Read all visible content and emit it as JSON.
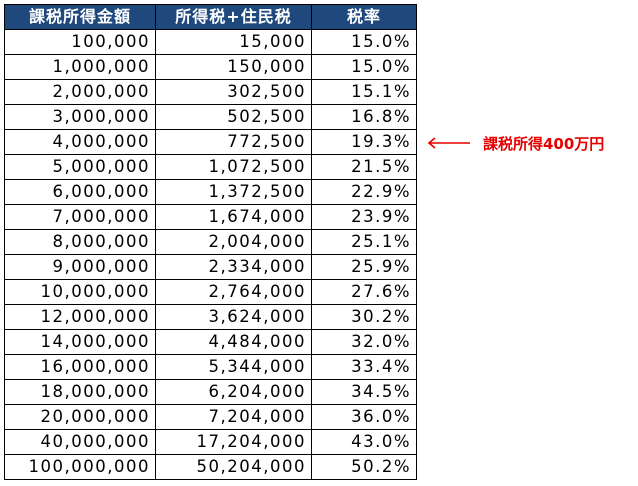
{
  "colors": {
    "header_bg": "#1f497d",
    "header_text": "#ffffff",
    "annotation": "#e60000"
  },
  "table": {
    "headers": [
      "課税所得金額",
      "所得税+住民税",
      "税率"
    ],
    "rows": [
      [
        "100,000",
        "15,000",
        "15.0%"
      ],
      [
        "1,000,000",
        "150,000",
        "15.0%"
      ],
      [
        "2,000,000",
        "302,500",
        "15.1%"
      ],
      [
        "3,000,000",
        "502,500",
        "16.8%"
      ],
      [
        "4,000,000",
        "772,500",
        "19.3%"
      ],
      [
        "5,000,000",
        "1,072,500",
        "21.5%"
      ],
      [
        "6,000,000",
        "1,372,500",
        "22.9%"
      ],
      [
        "7,000,000",
        "1,674,000",
        "23.9%"
      ],
      [
        "8,000,000",
        "2,004,000",
        "25.1%"
      ],
      [
        "9,000,000",
        "2,334,000",
        "25.9%"
      ],
      [
        "10,000,000",
        "2,764,000",
        "27.6%"
      ],
      [
        "12,000,000",
        "3,624,000",
        "30.2%"
      ],
      [
        "14,000,000",
        "4,484,000",
        "32.0%"
      ],
      [
        "16,000,000",
        "5,344,000",
        "33.4%"
      ],
      [
        "18,000,000",
        "6,204,000",
        "34.5%"
      ],
      [
        "20,000,000",
        "7,204,000",
        "36.0%"
      ],
      [
        "40,000,000",
        "17,204,000",
        "43.0%"
      ],
      [
        "100,000,000",
        "50,204,000",
        "50.2%"
      ]
    ]
  },
  "annotation": {
    "text": "課税所得400万円",
    "icon": "arrow-left-icon"
  }
}
